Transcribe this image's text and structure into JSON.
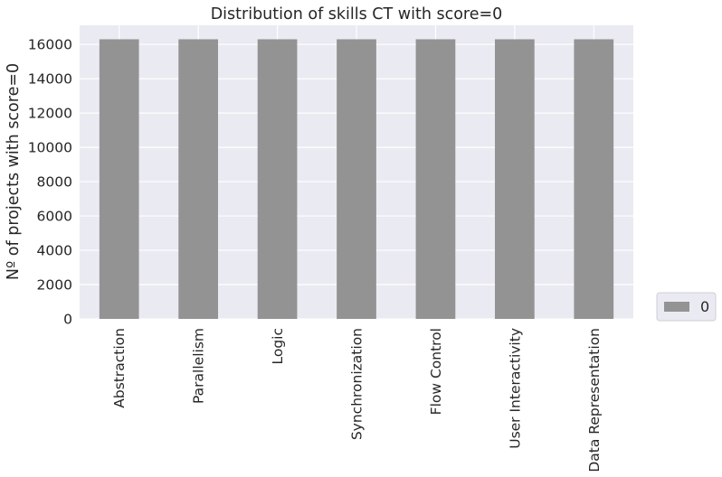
{
  "chart_data": {
    "type": "bar",
    "title": "Distribution of skills CT with score=0",
    "xlabel": "",
    "ylabel": "Nº of projects with score=0",
    "categories": [
      "Abstraction",
      "Parallelism",
      "Logic",
      "Synchronization",
      "Flow Control",
      "User Interactivity",
      "Data Representation"
    ],
    "series": [
      {
        "name": "0",
        "values": [
          16300,
          16300,
          16300,
          16300,
          16300,
          16300,
          16300
        ]
      }
    ],
    "yticks": [
      "0",
      "2000",
      "4000",
      "6000",
      "8000",
      "10000",
      "12000",
      "14000",
      "16000"
    ],
    "ytick_values": [
      0,
      2000,
      4000,
      6000,
      8000,
      10000,
      12000,
      14000,
      16000
    ],
    "ylim": [
      0,
      17115
    ],
    "grid": true,
    "legend": "lower-right outside",
    "colors": {
      "bar": "#939393",
      "plot_bg": "#eaeaf2",
      "grid": "#ffffff",
      "text": "#262626"
    }
  }
}
